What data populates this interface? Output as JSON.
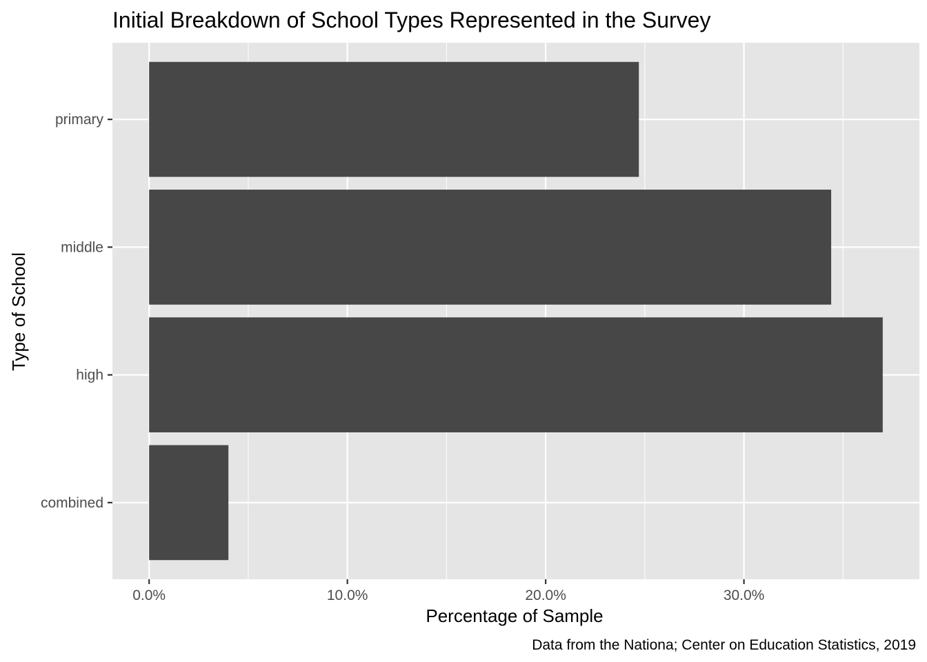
{
  "chart_data": {
    "type": "bar",
    "orientation": "horizontal",
    "title": "Initial Breakdown of School Types Represented in the Survey",
    "xlabel": "Percentage of Sample",
    "ylabel": "Type of School",
    "caption": "Data from the Nationa; Center on Education Statistics, 2019",
    "categories": [
      "primary",
      "middle",
      "high",
      "combined"
    ],
    "values": [
      24.7,
      34.4,
      37.0,
      4.0
    ],
    "xlim": [
      -1.85,
      38.85
    ],
    "x_ticks": [
      0,
      10,
      20,
      30
    ],
    "x_tick_labels": [
      "0.0%",
      "10.0%",
      "20.0%",
      "30.0%"
    ],
    "grid": true,
    "panel_color": "#e5e5e5",
    "bar_color": "#474747",
    "grid_color": "#ffffff"
  }
}
